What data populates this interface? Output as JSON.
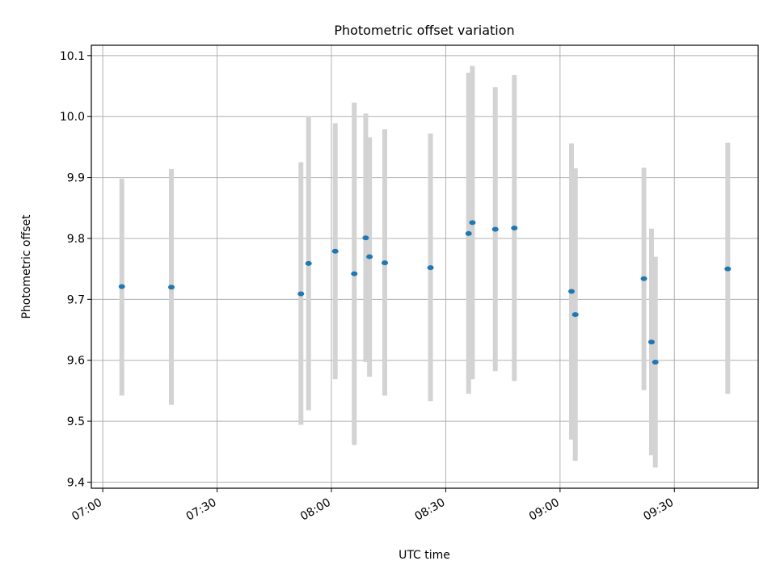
{
  "chart_data": {
    "type": "scatter",
    "title": "Photometric offset variation",
    "xlabel": "UTC time",
    "ylabel": "Photometric offset",
    "grid": true,
    "marker_color": "#1f77b4",
    "errorbar_color": "#d3d3d3",
    "xlim": [
      "06:57",
      "09:52"
    ],
    "ylim": [
      9.39,
      10.117
    ],
    "x_ticks": [
      "07:00",
      "07:30",
      "08:00",
      "08:30",
      "09:00",
      "09:30"
    ],
    "y_ticks": [
      9.4,
      9.5,
      9.6,
      9.7,
      9.8,
      9.9,
      10.0,
      10.1
    ],
    "y_tick_labels": [
      "9.4",
      "9.5",
      "9.6",
      "9.7",
      "9.8",
      "9.9",
      "10.0",
      "10.1"
    ],
    "points": [
      {
        "t": "07:05",
        "y": 9.721,
        "lo": 9.542,
        "hi": 9.898
      },
      {
        "t": "07:18",
        "y": 9.72,
        "lo": 9.527,
        "hi": 9.914
      },
      {
        "t": "07:52",
        "y": 9.709,
        "lo": 9.494,
        "hi": 9.925
      },
      {
        "t": "07:54",
        "y": 9.759,
        "lo": 9.518,
        "hi": 10.001
      },
      {
        "t": "08:01",
        "y": 9.779,
        "lo": 9.569,
        "hi": 9.989
      },
      {
        "t": "08:06",
        "y": 9.742,
        "lo": 9.461,
        "hi": 10.023
      },
      {
        "t": "08:09",
        "y": 9.801,
        "lo": 9.597,
        "hi": 10.005
      },
      {
        "t": "08:10",
        "y": 9.77,
        "lo": 9.573,
        "hi": 9.966
      },
      {
        "t": "08:14",
        "y": 9.76,
        "lo": 9.542,
        "hi": 9.979
      },
      {
        "t": "08:26",
        "y": 9.752,
        "lo": 9.533,
        "hi": 9.972
      },
      {
        "t": "08:36",
        "y": 9.808,
        "lo": 9.545,
        "hi": 10.072
      },
      {
        "t": "08:37",
        "y": 9.826,
        "lo": 9.569,
        "hi": 10.083
      },
      {
        "t": "08:43",
        "y": 9.815,
        "lo": 9.582,
        "hi": 10.048
      },
      {
        "t": "08:48",
        "y": 9.817,
        "lo": 9.566,
        "hi": 10.068
      },
      {
        "t": "09:03",
        "y": 9.713,
        "lo": 9.47,
        "hi": 9.956
      },
      {
        "t": "09:04",
        "y": 9.675,
        "lo": 9.435,
        "hi": 9.915
      },
      {
        "t": "09:22",
        "y": 9.734,
        "lo": 9.551,
        "hi": 9.916
      },
      {
        "t": "09:24",
        "y": 9.63,
        "lo": 9.444,
        "hi": 9.816
      },
      {
        "t": "09:25",
        "y": 9.597,
        "lo": 9.424,
        "hi": 9.77
      },
      {
        "t": "09:44",
        "y": 9.75,
        "lo": 9.545,
        "hi": 9.957
      }
    ]
  }
}
